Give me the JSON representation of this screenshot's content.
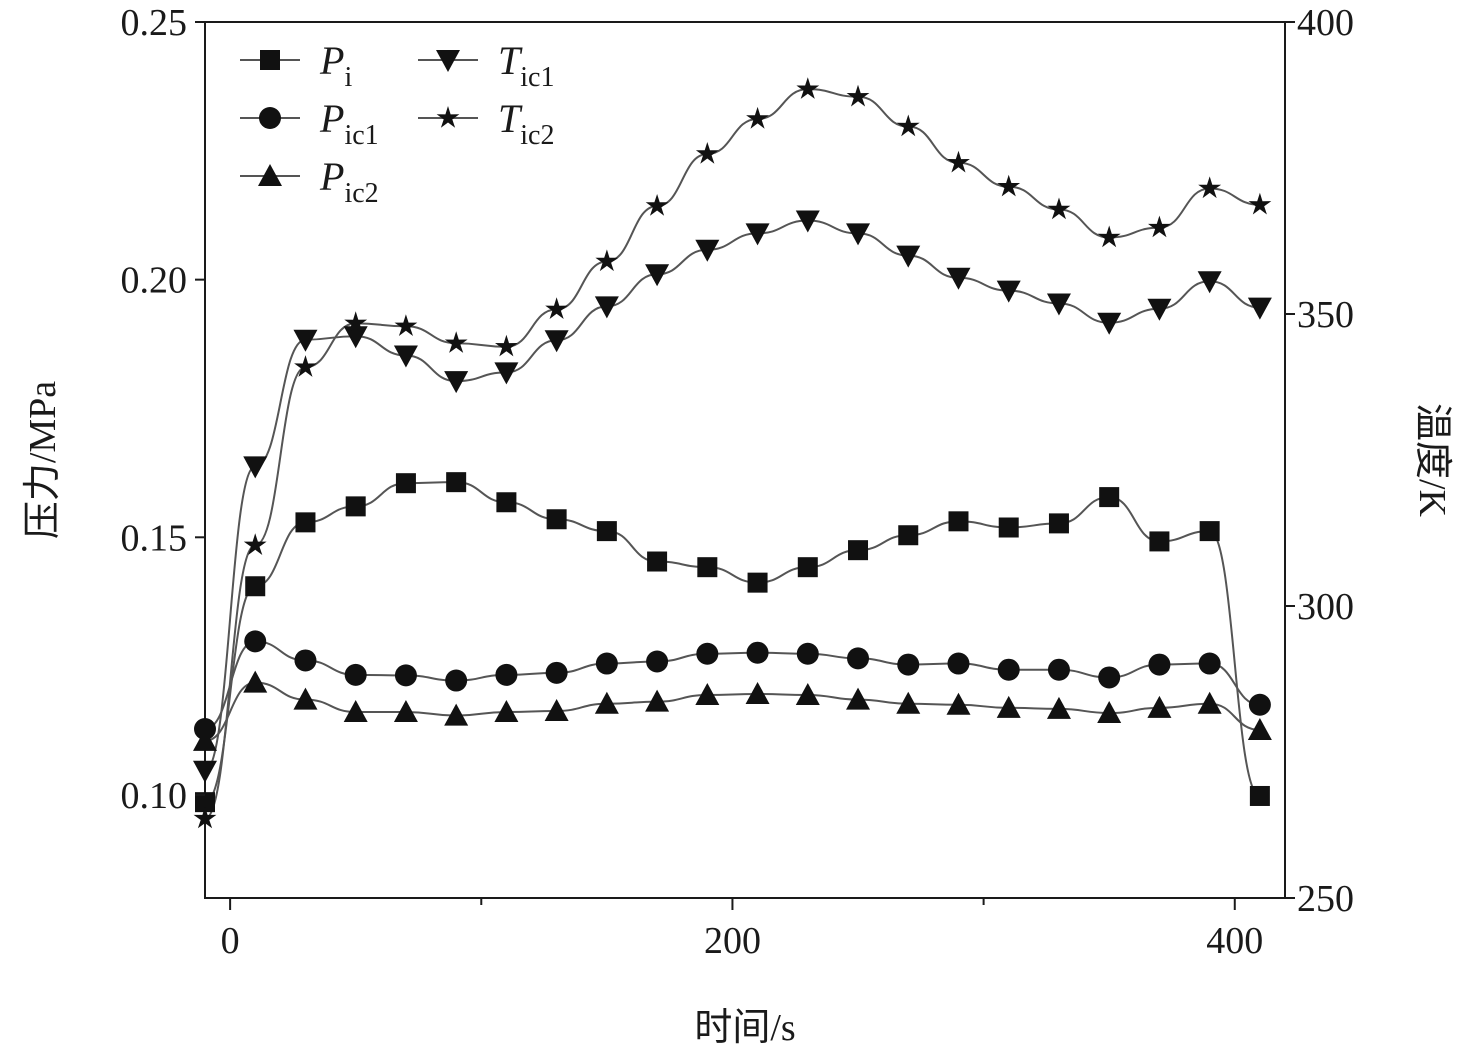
{
  "chart_data": {
    "type": "line",
    "xlabel": "时间/s",
    "ylabel": "压力/MPa",
    "y2label": "温度/K",
    "xlim": [
      -10,
      420
    ],
    "ylim": [
      0.08,
      0.25
    ],
    "y2lim": [
      250,
      400
    ],
    "xticks": [
      "0",
      "200",
      "400"
    ],
    "yticks": [
      "0.10",
      "0.15",
      "0.20",
      "0.25"
    ],
    "y2ticks": [
      "250",
      "300",
      "350",
      "400"
    ],
    "grid": false,
    "legend_placement": "top-left",
    "x": [
      -10,
      10,
      30,
      50,
      70,
      90,
      110,
      130,
      150,
      170,
      190,
      210,
      230,
      250,
      270,
      290,
      310,
      330,
      350,
      370,
      390,
      410
    ],
    "series": [
      {
        "symbol": "P",
        "sub": "i",
        "axis": "left",
        "marker": "square",
        "values": [
          0.0986,
          0.1405,
          0.1529,
          0.156,
          0.1605,
          0.1607,
          0.1568,
          0.1535,
          0.1512,
          0.1453,
          0.1442,
          0.1412,
          0.1442,
          0.1475,
          0.1504,
          0.1531,
          0.1519,
          0.1527,
          0.1578,
          0.1492,
          0.1512,
          0.0998
        ]
      },
      {
        "symbol": "P",
        "sub": "ic1",
        "axis": "left",
        "marker": "circle",
        "values": [
          0.1128,
          0.1298,
          0.1261,
          0.1233,
          0.1232,
          0.1222,
          0.1233,
          0.1237,
          0.1255,
          0.1259,
          0.1274,
          0.1276,
          0.1274,
          0.1265,
          0.1253,
          0.1255,
          0.1243,
          0.1243,
          0.1228,
          0.1253,
          0.1255,
          0.1175
        ]
      },
      {
        "symbol": "P",
        "sub": "ic2",
        "axis": "left",
        "marker": "triangle-up",
        "values": [
          0.1105,
          0.1218,
          0.1185,
          0.1161,
          0.1161,
          0.1154,
          0.1161,
          0.1163,
          0.1177,
          0.1181,
          0.1194,
          0.1196,
          0.1194,
          0.1185,
          0.1177,
          0.1175,
          0.1169,
          0.1167,
          0.1159,
          0.1169,
          0.1177,
          0.1126
        ]
      },
      {
        "symbol": "T",
        "sub": "ic1",
        "axis": "right",
        "marker": "triangle-down",
        "values": [
          271.8,
          323.9,
          345.6,
          346.2,
          342.9,
          338.5,
          340.0,
          345.5,
          351.3,
          356.8,
          361.0,
          363.8,
          366.0,
          363.8,
          360.0,
          356.2,
          354.0,
          351.8,
          348.5,
          350.9,
          355.6,
          351.1
        ]
      },
      {
        "symbol": "T",
        "sub": "ic2",
        "axis": "right",
        "marker": "star",
        "values": [
          263.6,
          310.4,
          340.9,
          348.4,
          347.9,
          345.0,
          344.4,
          350.8,
          359.0,
          368.5,
          377.4,
          383.4,
          388.5,
          387.2,
          382.1,
          375.9,
          371.8,
          367.9,
          363.1,
          364.8,
          371.5,
          368.7
        ]
      }
    ],
    "colors": {
      "line": "#555555",
      "marker": "#111111",
      "axis": "#1a1a1a"
    }
  }
}
